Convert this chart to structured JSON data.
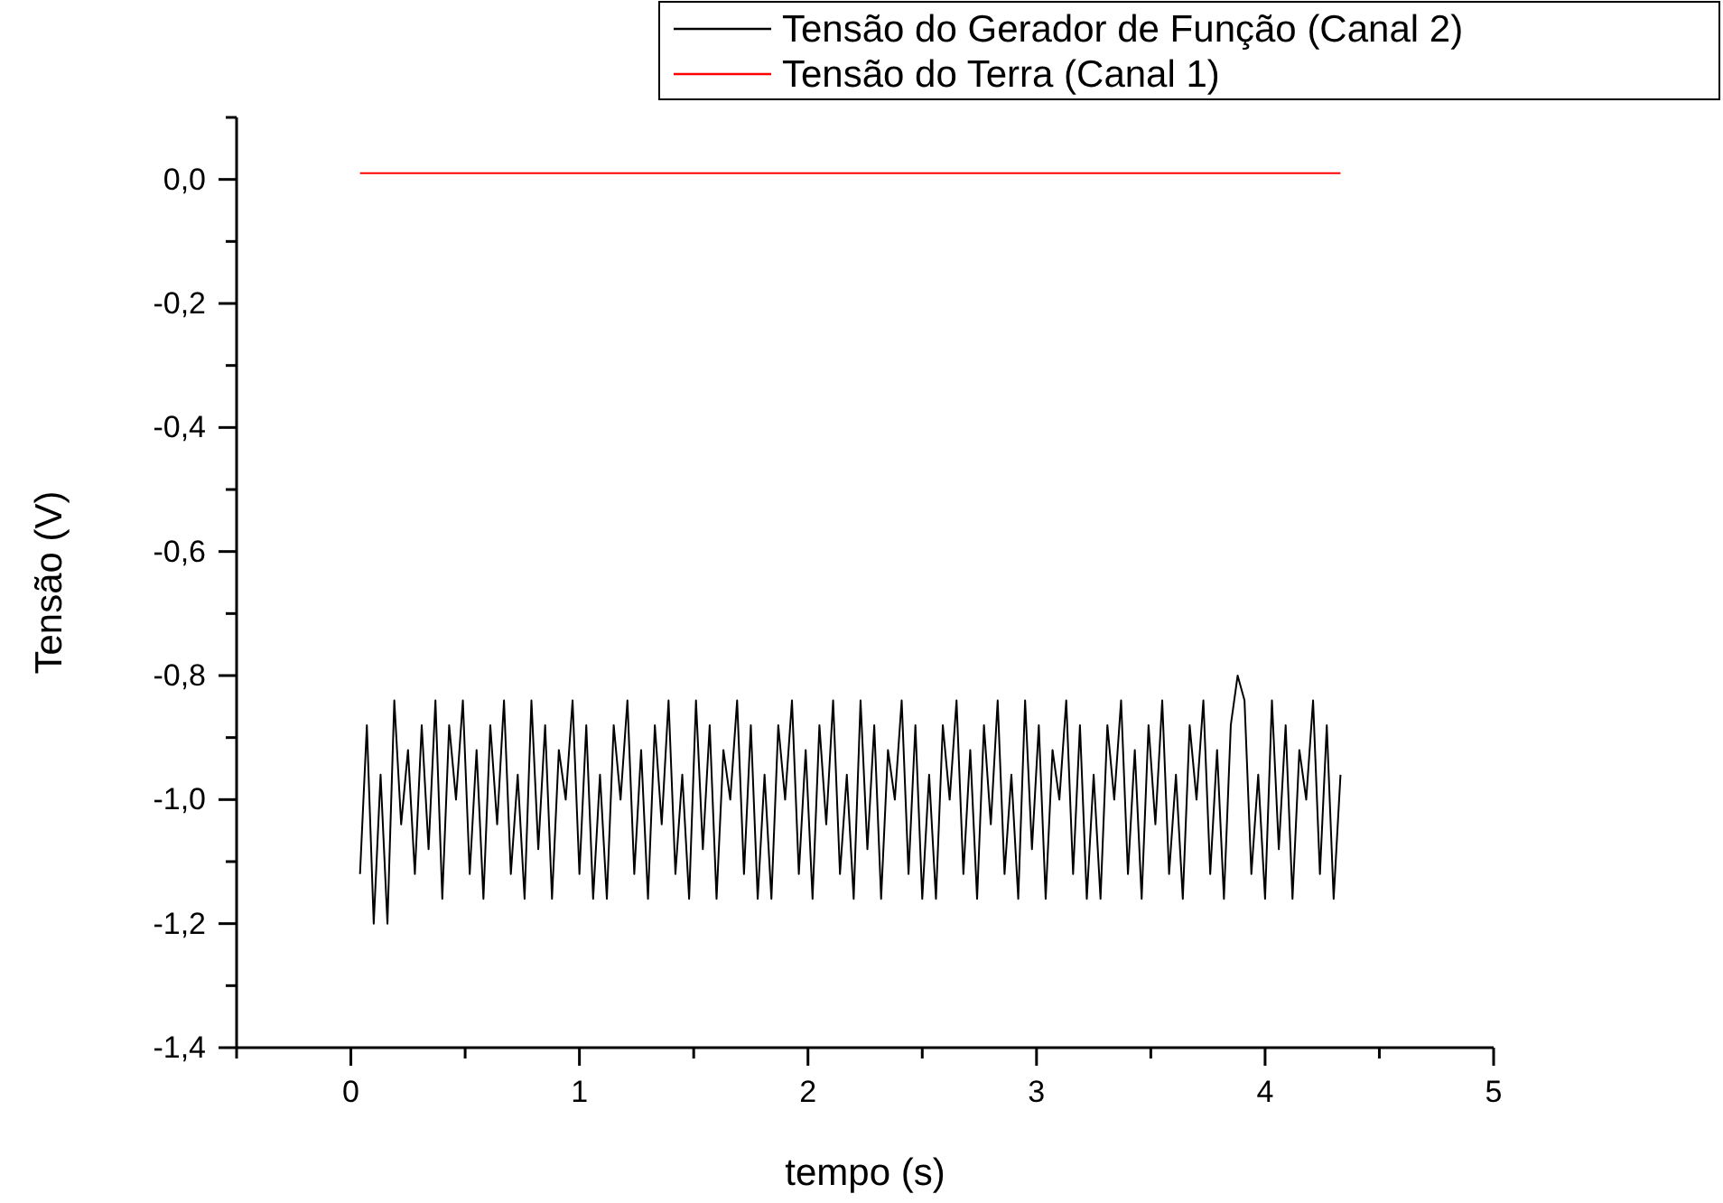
{
  "chart_data": {
    "type": "line",
    "xlabel": "tempo (s)",
    "ylabel": "Tensão (V)",
    "xlim": [
      -0.5,
      5
    ],
    "ylim": [
      -1.4,
      0.1
    ],
    "xticks": [
      {
        "value": -0.5,
        "label": null
      },
      0,
      {
        "value": 0.5,
        "label": null
      },
      1,
      {
        "value": 1.5,
        "label": null
      },
      2,
      {
        "value": 2.5,
        "label": null
      },
      3,
      {
        "value": 3.5,
        "label": null
      },
      4,
      {
        "value": 4.5,
        "label": null
      },
      5
    ],
    "yticks": [
      {
        "value": -1.4,
        "label": "-1,4"
      },
      {
        "value": -1.3,
        "label": null
      },
      {
        "value": -1.2,
        "label": "-1,2"
      },
      {
        "value": -1.1,
        "label": null
      },
      {
        "value": -1.0,
        "label": "-1,0"
      },
      {
        "value": -0.9,
        "label": null
      },
      {
        "value": -0.8,
        "label": "-0,8"
      },
      {
        "value": -0.7,
        "label": null
      },
      {
        "value": -0.6,
        "label": "-0,6"
      },
      {
        "value": -0.5,
        "label": null
      },
      {
        "value": -0.4,
        "label": "-0,4"
      },
      {
        "value": -0.3,
        "label": null
      },
      {
        "value": -0.2,
        "label": "-0,2"
      },
      {
        "value": -0.1,
        "label": null
      },
      {
        "value": 0.0,
        "label": "0,0"
      },
      {
        "value": 0.1,
        "label": null
      }
    ],
    "grid": false,
    "legend": "top right",
    "marker": "none",
    "line_style": "solid",
    "x": [
      0.04,
      0.07,
      0.1,
      0.13,
      0.16,
      0.19,
      0.22,
      0.25,
      0.28,
      0.31,
      0.34,
      0.37,
      0.4,
      0.43,
      0.46,
      0.49,
      0.52,
      0.55,
      0.58,
      0.61,
      0.64,
      0.67,
      0.7,
      0.73,
      0.76,
      0.79,
      0.82,
      0.85,
      0.88,
      0.91,
      0.94,
      0.97,
      1.0,
      1.03,
      1.06,
      1.09,
      1.12,
      1.15,
      1.18,
      1.21,
      1.24,
      1.27,
      1.3,
      1.33,
      1.36,
      1.39,
      1.42,
      1.45,
      1.48,
      1.51,
      1.54,
      1.57,
      1.6,
      1.63,
      1.66,
      1.69,
      1.72,
      1.75,
      1.78,
      1.81,
      1.84,
      1.87,
      1.9,
      1.93,
      1.96,
      1.99,
      2.02,
      2.05,
      2.08,
      2.11,
      2.14,
      2.17,
      2.2,
      2.23,
      2.26,
      2.29,
      2.32,
      2.35,
      2.38,
      2.41,
      2.44,
      2.47,
      2.5,
      2.53,
      2.56,
      2.59,
      2.62,
      2.65,
      2.68,
      2.71,
      2.74,
      2.77,
      2.8,
      2.83,
      2.86,
      2.89,
      2.92,
      2.95,
      2.98,
      3.01,
      3.04,
      3.07,
      3.1,
      3.13,
      3.16,
      3.19,
      3.22,
      3.25,
      3.28,
      3.31,
      3.34,
      3.37,
      3.4,
      3.43,
      3.46,
      3.49,
      3.52,
      3.55,
      3.58,
      3.61,
      3.64,
      3.67,
      3.7,
      3.73,
      3.76,
      3.79,
      3.82,
      3.85,
      3.88,
      3.91,
      3.94,
      3.97,
      4.0,
      4.03,
      4.06,
      4.09,
      4.12,
      4.15,
      4.18,
      4.21,
      4.24,
      4.27,
      4.3,
      4.33
    ],
    "series": [
      {
        "name": "Tensão do Gerador de Função (Canal 2)",
        "color": "#000000",
        "values": [
          -1.12,
          -0.88,
          -1.2,
          -0.96,
          -1.2,
          -0.84,
          -1.04,
          -0.92,
          -1.12,
          -0.88,
          -1.08,
          -0.84,
          -1.16,
          -0.88,
          -1.0,
          -0.84,
          -1.12,
          -0.92,
          -1.16,
          -0.88,
          -1.04,
          -0.84,
          -1.12,
          -0.96,
          -1.16,
          -0.84,
          -1.08,
          -0.88,
          -1.16,
          -0.92,
          -1.0,
          -0.84,
          -1.12,
          -0.88,
          -1.16,
          -0.96,
          -1.16,
          -0.88,
          -1.0,
          -0.84,
          -1.12,
          -0.92,
          -1.16,
          -0.88,
          -1.04,
          -0.84,
          -1.12,
          -0.96,
          -1.16,
          -0.84,
          -1.08,
          -0.88,
          -1.16,
          -0.92,
          -1.0,
          -0.84,
          -1.12,
          -0.88,
          -1.16,
          -0.96,
          -1.16,
          -0.88,
          -1.0,
          -0.84,
          -1.12,
          -0.92,
          -1.16,
          -0.88,
          -1.04,
          -0.84,
          -1.12,
          -0.96,
          -1.16,
          -0.84,
          -1.08,
          -0.88,
          -1.16,
          -0.92,
          -1.0,
          -0.84,
          -1.12,
          -0.88,
          -1.16,
          -0.96,
          -1.16,
          -0.88,
          -1.0,
          -0.84,
          -1.12,
          -0.92,
          -1.16,
          -0.88,
          -1.04,
          -0.84,
          -1.12,
          -0.96,
          -1.16,
          -0.84,
          -1.08,
          -0.88,
          -1.16,
          -0.92,
          -1.0,
          -0.84,
          -1.12,
          -0.88,
          -1.16,
          -0.96,
          -1.16,
          -0.88,
          -1.0,
          -0.84,
          -1.12,
          -0.92,
          -1.16,
          -0.88,
          -1.04,
          -0.84,
          -1.12,
          -0.96,
          -1.16,
          -0.88,
          -1.0,
          -0.84,
          -1.12,
          -0.92,
          -1.16,
          -0.88,
          -0.8,
          -0.84,
          -1.12,
          -0.96,
          -1.16,
          -0.84,
          -1.08,
          -0.88,
          -1.16,
          -0.92,
          -1.0,
          -0.84,
          -1.12,
          -0.88,
          -1.16,
          -0.96
        ]
      },
      {
        "name": "Tensão do Terra (Canal 1)",
        "color": "#ff0000",
        "values": [
          0.01,
          0.01,
          0.01,
          0.01,
          0.01,
          0.01,
          0.01,
          0.01,
          0.01,
          0.01,
          0.01,
          0.01,
          0.01,
          0.01,
          0.01,
          0.01,
          0.01,
          0.01,
          0.01,
          0.01,
          0.01,
          0.01,
          0.01,
          0.01,
          0.01,
          0.01,
          0.01,
          0.01,
          0.01,
          0.01,
          0.01,
          0.01,
          0.01,
          0.01,
          0.01,
          0.01,
          0.01,
          0.01,
          0.01,
          0.01,
          0.01,
          0.01,
          0.01,
          0.01,
          0.01,
          0.01,
          0.01,
          0.01,
          0.01,
          0.01,
          0.01,
          0.01,
          0.01,
          0.01,
          0.01,
          0.01,
          0.01,
          0.01,
          0.01,
          0.01,
          0.01,
          0.01,
          0.01,
          0.01,
          0.01,
          0.01,
          0.01,
          0.01,
          0.01,
          0.01,
          0.01,
          0.01,
          0.01,
          0.01,
          0.01,
          0.01,
          0.01,
          0.01,
          0.01,
          0.01,
          0.01,
          0.01,
          0.01,
          0.01,
          0.01,
          0.01,
          0.01,
          0.01,
          0.01,
          0.01,
          0.01,
          0.01,
          0.01,
          0.01,
          0.01,
          0.01,
          0.01,
          0.01,
          0.01,
          0.01,
          0.01,
          0.01,
          0.01,
          0.01,
          0.01,
          0.01,
          0.01,
          0.01,
          0.01,
          0.01,
          0.01,
          0.01,
          0.01,
          0.01,
          0.01,
          0.01,
          0.01,
          0.01,
          0.01,
          0.01,
          0.01,
          0.01,
          0.01,
          0.01,
          0.01,
          0.01,
          0.01,
          0.01,
          0.01,
          0.01,
          0.01,
          0.01,
          0.01,
          0.01,
          0.01,
          0.01,
          0.01,
          0.01,
          0.01,
          0.01,
          0.01,
          0.01,
          0.01,
          0.01
        ]
      }
    ]
  }
}
